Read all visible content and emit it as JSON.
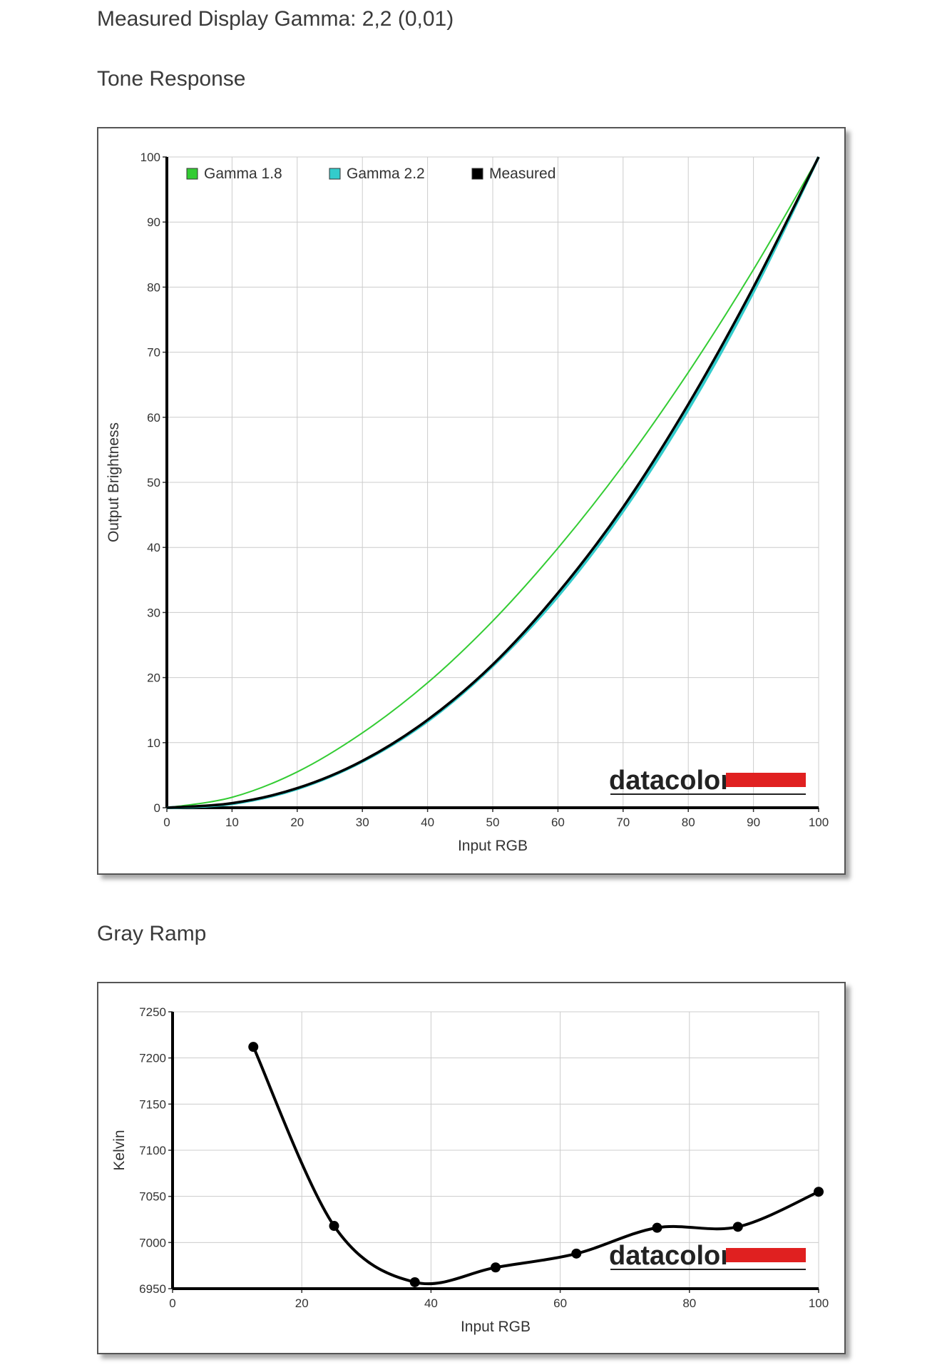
{
  "header": {
    "measured_gamma": "Measured Display Gamma: 2,2 (0,01)",
    "tone_title": "Tone Response",
    "gray_title": "Gray Ramp"
  },
  "logo": {
    "text": "datacolor",
    "accent_color": "#e02020"
  },
  "colors": {
    "gamma18": "#33cc33",
    "gamma22": "#33cccc",
    "measured": "#000000",
    "grid": "#cccccc"
  },
  "chart_data": [
    {
      "type": "line",
      "xlabel": "Input RGB",
      "ylabel": "Output Brightness",
      "xlim": [
        0,
        100
      ],
      "ylim": [
        0,
        100
      ],
      "xticks": [
        0,
        10,
        20,
        30,
        40,
        50,
        60,
        70,
        80,
        90,
        100
      ],
      "yticks": [
        0,
        10,
        20,
        30,
        40,
        50,
        60,
        70,
        80,
        90,
        100
      ],
      "grid": true,
      "legend_position": "top-left",
      "series": [
        {
          "name": "Gamma 1.8",
          "color": "#33cc33",
          "x": [
            0,
            10,
            20,
            30,
            40,
            50,
            60,
            70,
            80,
            90,
            100
          ],
          "values": [
            0,
            1.6,
            5.5,
            11.5,
            19.2,
            28.7,
            39.9,
            52.6,
            66.9,
            82.7,
            100
          ]
        },
        {
          "name": "Gamma 2.2",
          "color": "#33cccc",
          "x": [
            0,
            10,
            20,
            30,
            40,
            50,
            60,
            70,
            80,
            90,
            100
          ],
          "values": [
            0,
            0.6,
            2.9,
            7.1,
            13.3,
            21.8,
            32.5,
            45.6,
            61.2,
            79.3,
            100
          ]
        },
        {
          "name": "Measured",
          "color": "#000000",
          "x": [
            0,
            10,
            20,
            30,
            40,
            50,
            60,
            70,
            80,
            90,
            100
          ],
          "values": [
            0,
            0.7,
            3.0,
            7.2,
            13.5,
            22.0,
            33.0,
            46.2,
            62.0,
            80.0,
            100
          ]
        }
      ]
    },
    {
      "type": "line",
      "xlabel": "Input RGB",
      "ylabel": "Kelvin",
      "xlim": [
        0,
        100
      ],
      "ylim": [
        6950,
        7250
      ],
      "xticks": [
        0,
        20,
        40,
        60,
        80,
        100
      ],
      "yticks": [
        6950,
        7000,
        7050,
        7100,
        7150,
        7200,
        7250
      ],
      "grid": true,
      "series": [
        {
          "color": "#000000",
          "x": [
            12.5,
            25,
            37.5,
            50,
            62.5,
            75,
            87.5,
            100
          ],
          "values": [
            7212,
            7018,
            6957,
            6973,
            6988,
            7016,
            7017,
            7055
          ]
        }
      ]
    }
  ]
}
